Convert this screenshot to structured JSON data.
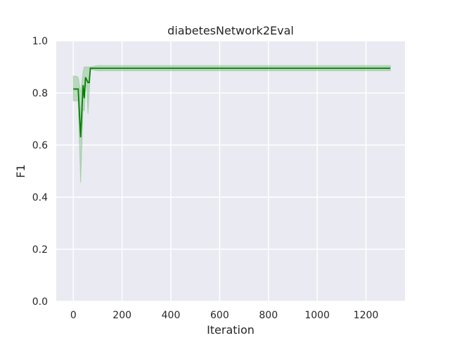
{
  "chart_data": {
    "type": "line",
    "title": "diabetesNetwork2Eval",
    "xlabel": "Iteration",
    "ylabel": "F1",
    "xlim": [
      -70,
      1360
    ],
    "ylim": [
      0,
      1.0
    ],
    "xticks": [
      0,
      200,
      400,
      600,
      800,
      1000,
      1200
    ],
    "yticks": [
      0.0,
      0.2,
      0.4,
      0.6,
      0.8,
      1.0
    ],
    "xtick_labels": [
      "0",
      "200",
      "400",
      "600",
      "800",
      "1000",
      "1200"
    ],
    "ytick_labels": [
      "0.0",
      "0.2",
      "0.4",
      "0.6",
      "0.8",
      "1.0"
    ],
    "grid": true,
    "background_color": "#eaeaf2",
    "line_color": "#008000",
    "band_color": "#7fbf7f",
    "series": [
      {
        "x": [
          0,
          10,
          20,
          30,
          40,
          45,
          50,
          55,
          60,
          65,
          70,
          100,
          200,
          400,
          600,
          800,
          1000,
          1200,
          1300
        ],
        "y": [
          0.815,
          0.815,
          0.815,
          0.63,
          0.83,
          0.78,
          0.86,
          0.85,
          0.84,
          0.84,
          0.895,
          0.895,
          0.895,
          0.895,
          0.895,
          0.895,
          0.895,
          0.895,
          0.895
        ],
        "lower": [
          0.77,
          0.77,
          0.77,
          0.455,
          0.74,
          0.73,
          0.82,
          0.83,
          0.72,
          0.8,
          0.89,
          0.885,
          0.885,
          0.885,
          0.885,
          0.885,
          0.885,
          0.885,
          0.885
        ],
        "upper": [
          0.865,
          0.865,
          0.86,
          0.8,
          0.88,
          0.9,
          0.9,
          0.9,
          0.9,
          0.9,
          0.9,
          0.905,
          0.905,
          0.905,
          0.905,
          0.905,
          0.905,
          0.905,
          0.905
        ]
      }
    ]
  }
}
